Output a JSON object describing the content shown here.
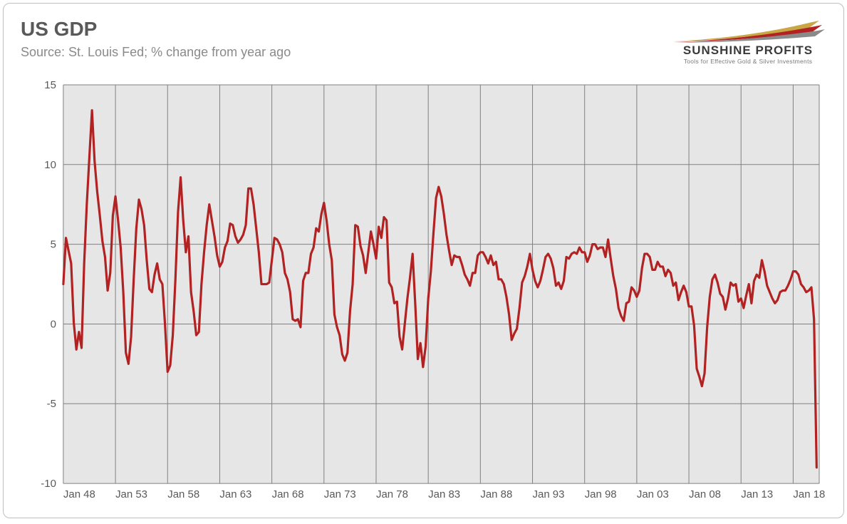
{
  "header": {
    "title": "US GDP",
    "subtitle": "Source: St. Louis Fed; % change from year ago"
  },
  "logo": {
    "brand_main": "SUNSHINE PROFITS",
    "brand_sub": "Tools for Effective Gold & Silver Investments",
    "swoosh_colors": [
      "#c9a646",
      "#b22222",
      "#8a8a8a"
    ]
  },
  "chart": {
    "type": "line",
    "plot_bg": "#e6e6e6",
    "grid_color": "#808080",
    "grid_width": 1,
    "axis_color": "#595959",
    "line_color": "#b22222",
    "line_width": 3.2,
    "tick_font_size": 15,
    "xlim": [
      1948,
      2020.5
    ],
    "ylim": [
      -10,
      15
    ],
    "yticks": [
      -10,
      -5,
      0,
      5,
      10,
      15
    ],
    "xticks": [
      {
        "v": 1948,
        "label": "Jan 48"
      },
      {
        "v": 1953,
        "label": "Jan 53"
      },
      {
        "v": 1958,
        "label": "Jan 58"
      },
      {
        "v": 1963,
        "label": "Jan 63"
      },
      {
        "v": 1968,
        "label": "Jan 68"
      },
      {
        "v": 1973,
        "label": "Jan 73"
      },
      {
        "v": 1978,
        "label": "Jan 78"
      },
      {
        "v": 1983,
        "label": "Jan 83"
      },
      {
        "v": 1988,
        "label": "Jan 88"
      },
      {
        "v": 1993,
        "label": "Jan 93"
      },
      {
        "v": 1998,
        "label": "Jan 98"
      },
      {
        "v": 2003,
        "label": "Jan 03"
      },
      {
        "v": 2008,
        "label": "Jan 08"
      },
      {
        "v": 2013,
        "label": "Jan 13"
      },
      {
        "v": 2018,
        "label": "Jan 18"
      }
    ],
    "series": [
      {
        "x": 1948.0,
        "y": 2.5
      },
      {
        "x": 1948.25,
        "y": 5.4
      },
      {
        "x": 1948.5,
        "y": 4.6
      },
      {
        "x": 1948.75,
        "y": 3.8
      },
      {
        "x": 1949.0,
        "y": 0.1
      },
      {
        "x": 1949.25,
        "y": -1.6
      },
      {
        "x": 1949.5,
        "y": -0.5
      },
      {
        "x": 1949.75,
        "y": -1.5
      },
      {
        "x": 1950.0,
        "y": 3.8
      },
      {
        "x": 1950.25,
        "y": 7.5
      },
      {
        "x": 1950.5,
        "y": 10.5
      },
      {
        "x": 1950.75,
        "y": 13.4
      },
      {
        "x": 1951.0,
        "y": 10.2
      },
      {
        "x": 1951.25,
        "y": 8.3
      },
      {
        "x": 1951.5,
        "y": 6.8
      },
      {
        "x": 1951.75,
        "y": 5.2
      },
      {
        "x": 1952.0,
        "y": 4.2
      },
      {
        "x": 1952.25,
        "y": 2.1
      },
      {
        "x": 1952.5,
        "y": 3.2
      },
      {
        "x": 1952.75,
        "y": 6.8
      },
      {
        "x": 1953.0,
        "y": 8.0
      },
      {
        "x": 1953.25,
        "y": 6.5
      },
      {
        "x": 1953.5,
        "y": 4.8
      },
      {
        "x": 1953.75,
        "y": 2.0
      },
      {
        "x": 1954.0,
        "y": -1.8
      },
      {
        "x": 1954.25,
        "y": -2.5
      },
      {
        "x": 1954.5,
        "y": -0.8
      },
      {
        "x": 1954.75,
        "y": 2.8
      },
      {
        "x": 1955.0,
        "y": 6.0
      },
      {
        "x": 1955.25,
        "y": 7.8
      },
      {
        "x": 1955.5,
        "y": 7.2
      },
      {
        "x": 1955.75,
        "y": 6.2
      },
      {
        "x": 1956.0,
        "y": 4.0
      },
      {
        "x": 1956.25,
        "y": 2.2
      },
      {
        "x": 1956.5,
        "y": 2.0
      },
      {
        "x": 1956.75,
        "y": 3.1
      },
      {
        "x": 1957.0,
        "y": 3.8
      },
      {
        "x": 1957.25,
        "y": 2.8
      },
      {
        "x": 1957.5,
        "y": 2.5
      },
      {
        "x": 1957.75,
        "y": 0.0
      },
      {
        "x": 1958.0,
        "y": -3.0
      },
      {
        "x": 1958.25,
        "y": -2.6
      },
      {
        "x": 1958.5,
        "y": -0.7
      },
      {
        "x": 1958.75,
        "y": 2.8
      },
      {
        "x": 1959.0,
        "y": 7.0
      },
      {
        "x": 1959.25,
        "y": 9.2
      },
      {
        "x": 1959.5,
        "y": 6.5
      },
      {
        "x": 1959.75,
        "y": 4.5
      },
      {
        "x": 1960.0,
        "y": 5.5
      },
      {
        "x": 1960.25,
        "y": 2.0
      },
      {
        "x": 1960.5,
        "y": 0.8
      },
      {
        "x": 1960.75,
        "y": -0.7
      },
      {
        "x": 1961.0,
        "y": -0.5
      },
      {
        "x": 1961.25,
        "y": 2.5
      },
      {
        "x": 1961.5,
        "y": 4.5
      },
      {
        "x": 1961.75,
        "y": 6.2
      },
      {
        "x": 1962.0,
        "y": 7.5
      },
      {
        "x": 1962.25,
        "y": 6.5
      },
      {
        "x": 1962.5,
        "y": 5.5
      },
      {
        "x": 1962.75,
        "y": 4.3
      },
      {
        "x": 1963.0,
        "y": 3.6
      },
      {
        "x": 1963.25,
        "y": 3.9
      },
      {
        "x": 1963.5,
        "y": 4.8
      },
      {
        "x": 1963.75,
        "y": 5.2
      },
      {
        "x": 1964.0,
        "y": 6.3
      },
      {
        "x": 1964.25,
        "y": 6.2
      },
      {
        "x": 1964.5,
        "y": 5.5
      },
      {
        "x": 1964.75,
        "y": 5.1
      },
      {
        "x": 1965.0,
        "y": 5.3
      },
      {
        "x": 1965.25,
        "y": 5.6
      },
      {
        "x": 1965.5,
        "y": 6.2
      },
      {
        "x": 1965.75,
        "y": 8.5
      },
      {
        "x": 1966.0,
        "y": 8.5
      },
      {
        "x": 1966.25,
        "y": 7.5
      },
      {
        "x": 1966.5,
        "y": 6.0
      },
      {
        "x": 1966.75,
        "y": 4.5
      },
      {
        "x": 1967.0,
        "y": 2.5
      },
      {
        "x": 1967.25,
        "y": 2.5
      },
      {
        "x": 1967.5,
        "y": 2.5
      },
      {
        "x": 1967.75,
        "y": 2.6
      },
      {
        "x": 1968.0,
        "y": 4.0
      },
      {
        "x": 1968.25,
        "y": 5.4
      },
      {
        "x": 1968.5,
        "y": 5.3
      },
      {
        "x": 1968.75,
        "y": 5.0
      },
      {
        "x": 1969.0,
        "y": 4.5
      },
      {
        "x": 1969.25,
        "y": 3.2
      },
      {
        "x": 1969.5,
        "y": 2.8
      },
      {
        "x": 1969.75,
        "y": 2.0
      },
      {
        "x": 1970.0,
        "y": 0.3
      },
      {
        "x": 1970.25,
        "y": 0.2
      },
      {
        "x": 1970.5,
        "y": 0.3
      },
      {
        "x": 1970.75,
        "y": -0.2
      },
      {
        "x": 1971.0,
        "y": 2.7
      },
      {
        "x": 1971.25,
        "y": 3.2
      },
      {
        "x": 1971.5,
        "y": 3.2
      },
      {
        "x": 1971.75,
        "y": 4.4
      },
      {
        "x": 1972.0,
        "y": 4.8
      },
      {
        "x": 1972.25,
        "y": 6.0
      },
      {
        "x": 1972.5,
        "y": 5.8
      },
      {
        "x": 1972.75,
        "y": 6.9
      },
      {
        "x": 1973.0,
        "y": 7.6
      },
      {
        "x": 1973.25,
        "y": 6.5
      },
      {
        "x": 1973.5,
        "y": 5.0
      },
      {
        "x": 1973.75,
        "y": 4.0
      },
      {
        "x": 1974.0,
        "y": 0.6
      },
      {
        "x": 1974.25,
        "y": -0.2
      },
      {
        "x": 1974.5,
        "y": -0.7
      },
      {
        "x": 1974.75,
        "y": -1.9
      },
      {
        "x": 1975.0,
        "y": -2.3
      },
      {
        "x": 1975.25,
        "y": -1.8
      },
      {
        "x": 1975.5,
        "y": 0.8
      },
      {
        "x": 1975.75,
        "y": 2.5
      },
      {
        "x": 1976.0,
        "y": 6.2
      },
      {
        "x": 1976.25,
        "y": 6.1
      },
      {
        "x": 1976.5,
        "y": 4.9
      },
      {
        "x": 1976.75,
        "y": 4.3
      },
      {
        "x": 1977.0,
        "y": 3.2
      },
      {
        "x": 1977.25,
        "y": 4.5
      },
      {
        "x": 1977.5,
        "y": 5.8
      },
      {
        "x": 1977.75,
        "y": 5.0
      },
      {
        "x": 1978.0,
        "y": 4.1
      },
      {
        "x": 1978.25,
        "y": 6.1
      },
      {
        "x": 1978.5,
        "y": 5.4
      },
      {
        "x": 1978.75,
        "y": 6.7
      },
      {
        "x": 1979.0,
        "y": 6.5
      },
      {
        "x": 1979.25,
        "y": 2.6
      },
      {
        "x": 1979.5,
        "y": 2.3
      },
      {
        "x": 1979.75,
        "y": 1.3
      },
      {
        "x": 1980.0,
        "y": 1.4
      },
      {
        "x": 1980.25,
        "y": -0.8
      },
      {
        "x": 1980.5,
        "y": -1.6
      },
      {
        "x": 1980.75,
        "y": 0.0
      },
      {
        "x": 1981.0,
        "y": 1.6
      },
      {
        "x": 1981.25,
        "y": 2.9
      },
      {
        "x": 1981.5,
        "y": 4.4
      },
      {
        "x": 1981.75,
        "y": 1.3
      },
      {
        "x": 1982.0,
        "y": -2.2
      },
      {
        "x": 1982.25,
        "y": -1.2
      },
      {
        "x": 1982.5,
        "y": -2.7
      },
      {
        "x": 1982.75,
        "y": -1.4
      },
      {
        "x": 1983.0,
        "y": 1.6
      },
      {
        "x": 1983.25,
        "y": 3.3
      },
      {
        "x": 1983.5,
        "y": 5.7
      },
      {
        "x": 1983.75,
        "y": 7.9
      },
      {
        "x": 1984.0,
        "y": 8.6
      },
      {
        "x": 1984.25,
        "y": 8.0
      },
      {
        "x": 1984.5,
        "y": 6.9
      },
      {
        "x": 1984.75,
        "y": 5.6
      },
      {
        "x": 1985.0,
        "y": 4.6
      },
      {
        "x": 1985.25,
        "y": 3.7
      },
      {
        "x": 1985.5,
        "y": 4.3
      },
      {
        "x": 1985.75,
        "y": 4.2
      },
      {
        "x": 1986.0,
        "y": 4.2
      },
      {
        "x": 1986.25,
        "y": 3.7
      },
      {
        "x": 1986.5,
        "y": 3.1
      },
      {
        "x": 1986.75,
        "y": 2.8
      },
      {
        "x": 1987.0,
        "y": 2.4
      },
      {
        "x": 1987.25,
        "y": 3.2
      },
      {
        "x": 1987.5,
        "y": 3.2
      },
      {
        "x": 1987.75,
        "y": 4.3
      },
      {
        "x": 1988.0,
        "y": 4.5
      },
      {
        "x": 1988.25,
        "y": 4.5
      },
      {
        "x": 1988.5,
        "y": 4.2
      },
      {
        "x": 1988.75,
        "y": 3.8
      },
      {
        "x": 1989.0,
        "y": 4.3
      },
      {
        "x": 1989.25,
        "y": 3.7
      },
      {
        "x": 1989.5,
        "y": 3.9
      },
      {
        "x": 1989.75,
        "y": 2.8
      },
      {
        "x": 1990.0,
        "y": 2.8
      },
      {
        "x": 1990.25,
        "y": 2.5
      },
      {
        "x": 1990.5,
        "y": 1.7
      },
      {
        "x": 1990.75,
        "y": 0.6
      },
      {
        "x": 1991.0,
        "y": -1.0
      },
      {
        "x": 1991.25,
        "y": -0.6
      },
      {
        "x": 1991.5,
        "y": -0.3
      },
      {
        "x": 1991.75,
        "y": 1.0
      },
      {
        "x": 1992.0,
        "y": 2.6
      },
      {
        "x": 1992.25,
        "y": 3.0
      },
      {
        "x": 1992.5,
        "y": 3.6
      },
      {
        "x": 1992.75,
        "y": 4.4
      },
      {
        "x": 1993.0,
        "y": 3.4
      },
      {
        "x": 1993.25,
        "y": 2.7
      },
      {
        "x": 1993.5,
        "y": 2.3
      },
      {
        "x": 1993.75,
        "y": 2.7
      },
      {
        "x": 1994.0,
        "y": 3.4
      },
      {
        "x": 1994.25,
        "y": 4.2
      },
      {
        "x": 1994.5,
        "y": 4.4
      },
      {
        "x": 1994.75,
        "y": 4.1
      },
      {
        "x": 1995.0,
        "y": 3.5
      },
      {
        "x": 1995.25,
        "y": 2.4
      },
      {
        "x": 1995.5,
        "y": 2.6
      },
      {
        "x": 1995.75,
        "y": 2.2
      },
      {
        "x": 1996.0,
        "y": 2.7
      },
      {
        "x": 1996.25,
        "y": 4.2
      },
      {
        "x": 1996.5,
        "y": 4.1
      },
      {
        "x": 1996.75,
        "y": 4.4
      },
      {
        "x": 1997.0,
        "y": 4.5
      },
      {
        "x": 1997.25,
        "y": 4.4
      },
      {
        "x": 1997.5,
        "y": 4.8
      },
      {
        "x": 1997.75,
        "y": 4.5
      },
      {
        "x": 1998.0,
        "y": 4.5
      },
      {
        "x": 1998.25,
        "y": 3.9
      },
      {
        "x": 1998.5,
        "y": 4.3
      },
      {
        "x": 1998.75,
        "y": 5.0
      },
      {
        "x": 1999.0,
        "y": 5.0
      },
      {
        "x": 1999.25,
        "y": 4.7
      },
      {
        "x": 1999.5,
        "y": 4.8
      },
      {
        "x": 1999.75,
        "y": 4.8
      },
      {
        "x": 2000.0,
        "y": 4.2
      },
      {
        "x": 2000.25,
        "y": 5.3
      },
      {
        "x": 2000.5,
        "y": 4.1
      },
      {
        "x": 2000.75,
        "y": 3.0
      },
      {
        "x": 2001.0,
        "y": 2.2
      },
      {
        "x": 2001.25,
        "y": 1.0
      },
      {
        "x": 2001.5,
        "y": 0.5
      },
      {
        "x": 2001.75,
        "y": 0.2
      },
      {
        "x": 2002.0,
        "y": 1.3
      },
      {
        "x": 2002.25,
        "y": 1.4
      },
      {
        "x": 2002.5,
        "y": 2.3
      },
      {
        "x": 2002.75,
        "y": 2.1
      },
      {
        "x": 2003.0,
        "y": 1.7
      },
      {
        "x": 2003.25,
        "y": 2.1
      },
      {
        "x": 2003.5,
        "y": 3.5
      },
      {
        "x": 2003.75,
        "y": 4.4
      },
      {
        "x": 2004.0,
        "y": 4.4
      },
      {
        "x": 2004.25,
        "y": 4.2
      },
      {
        "x": 2004.5,
        "y": 3.4
      },
      {
        "x": 2004.75,
        "y": 3.4
      },
      {
        "x": 2005.0,
        "y": 3.9
      },
      {
        "x": 2005.25,
        "y": 3.6
      },
      {
        "x": 2005.5,
        "y": 3.6
      },
      {
        "x": 2005.75,
        "y": 3.0
      },
      {
        "x": 2006.0,
        "y": 3.4
      },
      {
        "x": 2006.25,
        "y": 3.2
      },
      {
        "x": 2006.5,
        "y": 2.4
      },
      {
        "x": 2006.75,
        "y": 2.6
      },
      {
        "x": 2007.0,
        "y": 1.5
      },
      {
        "x": 2007.25,
        "y": 2.0
      },
      {
        "x": 2007.5,
        "y": 2.4
      },
      {
        "x": 2007.75,
        "y": 2.0
      },
      {
        "x": 2008.0,
        "y": 1.1
      },
      {
        "x": 2008.25,
        "y": 1.1
      },
      {
        "x": 2008.5,
        "y": -0.1
      },
      {
        "x": 2008.75,
        "y": -2.8
      },
      {
        "x": 2009.0,
        "y": -3.3
      },
      {
        "x": 2009.25,
        "y": -3.9
      },
      {
        "x": 2009.5,
        "y": -3.1
      },
      {
        "x": 2009.75,
        "y": -0.2
      },
      {
        "x": 2010.0,
        "y": 1.7
      },
      {
        "x": 2010.25,
        "y": 2.8
      },
      {
        "x": 2010.5,
        "y": 3.1
      },
      {
        "x": 2010.75,
        "y": 2.6
      },
      {
        "x": 2011.0,
        "y": 1.9
      },
      {
        "x": 2011.25,
        "y": 1.7
      },
      {
        "x": 2011.5,
        "y": 0.9
      },
      {
        "x": 2011.75,
        "y": 1.6
      },
      {
        "x": 2012.0,
        "y": 2.6
      },
      {
        "x": 2012.25,
        "y": 2.4
      },
      {
        "x": 2012.5,
        "y": 2.5
      },
      {
        "x": 2012.75,
        "y": 1.4
      },
      {
        "x": 2013.0,
        "y": 1.6
      },
      {
        "x": 2013.25,
        "y": 1.0
      },
      {
        "x": 2013.5,
        "y": 1.8
      },
      {
        "x": 2013.75,
        "y": 2.5
      },
      {
        "x": 2014.0,
        "y": 1.3
      },
      {
        "x": 2014.25,
        "y": 2.7
      },
      {
        "x": 2014.5,
        "y": 3.1
      },
      {
        "x": 2014.75,
        "y": 2.9
      },
      {
        "x": 2015.0,
        "y": 4.0
      },
      {
        "x": 2015.25,
        "y": 3.3
      },
      {
        "x": 2015.5,
        "y": 2.4
      },
      {
        "x": 2015.75,
        "y": 2.0
      },
      {
        "x": 2016.0,
        "y": 1.6
      },
      {
        "x": 2016.25,
        "y": 1.3
      },
      {
        "x": 2016.5,
        "y": 1.5
      },
      {
        "x": 2016.75,
        "y": 2.0
      },
      {
        "x": 2017.0,
        "y": 2.1
      },
      {
        "x": 2017.25,
        "y": 2.1
      },
      {
        "x": 2017.5,
        "y": 2.4
      },
      {
        "x": 2017.75,
        "y": 2.8
      },
      {
        "x": 2018.0,
        "y": 3.3
      },
      {
        "x": 2018.25,
        "y": 3.3
      },
      {
        "x": 2018.5,
        "y": 3.1
      },
      {
        "x": 2018.75,
        "y": 2.5
      },
      {
        "x": 2019.0,
        "y": 2.3
      },
      {
        "x": 2019.25,
        "y": 2.0
      },
      {
        "x": 2019.5,
        "y": 2.1
      },
      {
        "x": 2019.75,
        "y": 2.3
      },
      {
        "x": 2020.0,
        "y": 0.3
      },
      {
        "x": 2020.25,
        "y": -9.0
      }
    ]
  }
}
